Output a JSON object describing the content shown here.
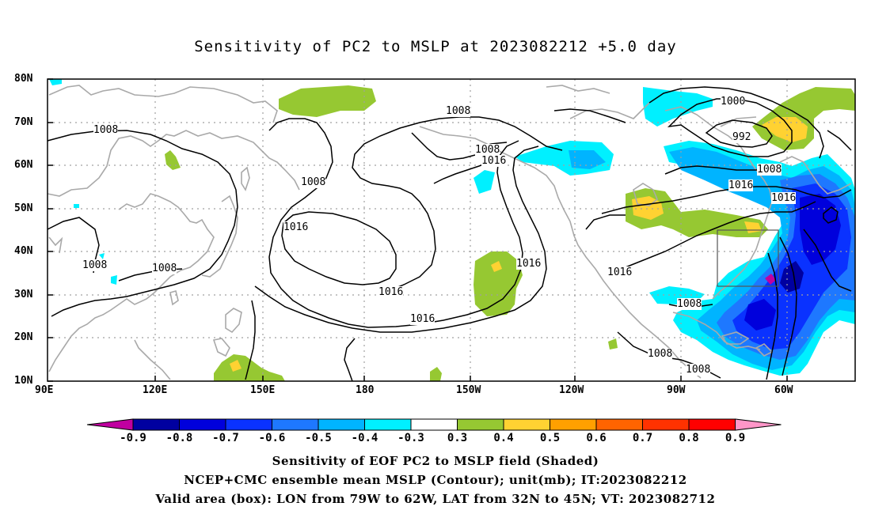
{
  "title": "Sensitivity of PC2 to MSLP at 2023082212 +5.0 day",
  "lat_labels": [
    "80N",
    "70N",
    "60N",
    "50N",
    "40N",
    "30N",
    "20N",
    "10N"
  ],
  "lon_labels": [
    "90E",
    "120E",
    "150E",
    "180",
    "150W",
    "120W",
    "90W",
    "60W"
  ],
  "contour_labels": [
    "1008",
    "1008",
    "1008",
    "1008",
    "1008",
    "1016",
    "1016",
    "1016",
    "1016",
    "1016",
    "1016",
    "1016",
    "1008",
    "1008",
    "1008",
    "1008",
    "1000",
    "992",
    "1016",
    "1008",
    "1008"
  ],
  "colorbar": {
    "labels": [
      "-0.9",
      "-0.8",
      "-0.7",
      "-0.6",
      "-0.5",
      "-0.4",
      "-0.3",
      "0.3",
      "0.4",
      "0.5",
      "0.6",
      "0.7",
      "0.8",
      "0.9"
    ],
    "colors": [
      "#0000a0",
      "#0000dc",
      "#0a32ff",
      "#1e78ff",
      "#00b4ff",
      "#00f0ff",
      "#ffffff",
      "#96c832",
      "#ffd232",
      "#ffa000",
      "#ff6400",
      "#ff3200",
      "#ff0000"
    ],
    "low_end": "#c000a0",
    "high_end": "#ff96c8"
  },
  "caption": {
    "line1": "Sensitivity of EOF PC2 to MSLP field (Shaded)",
    "line2": "NCEP+CMC ensemble mean MSLP (Contour); unit(mb); IT:2023082212",
    "line3": "Valid area (box): LON from 79W to 62W, LAT from 32N to 45N; VT: 2023082712"
  }
}
